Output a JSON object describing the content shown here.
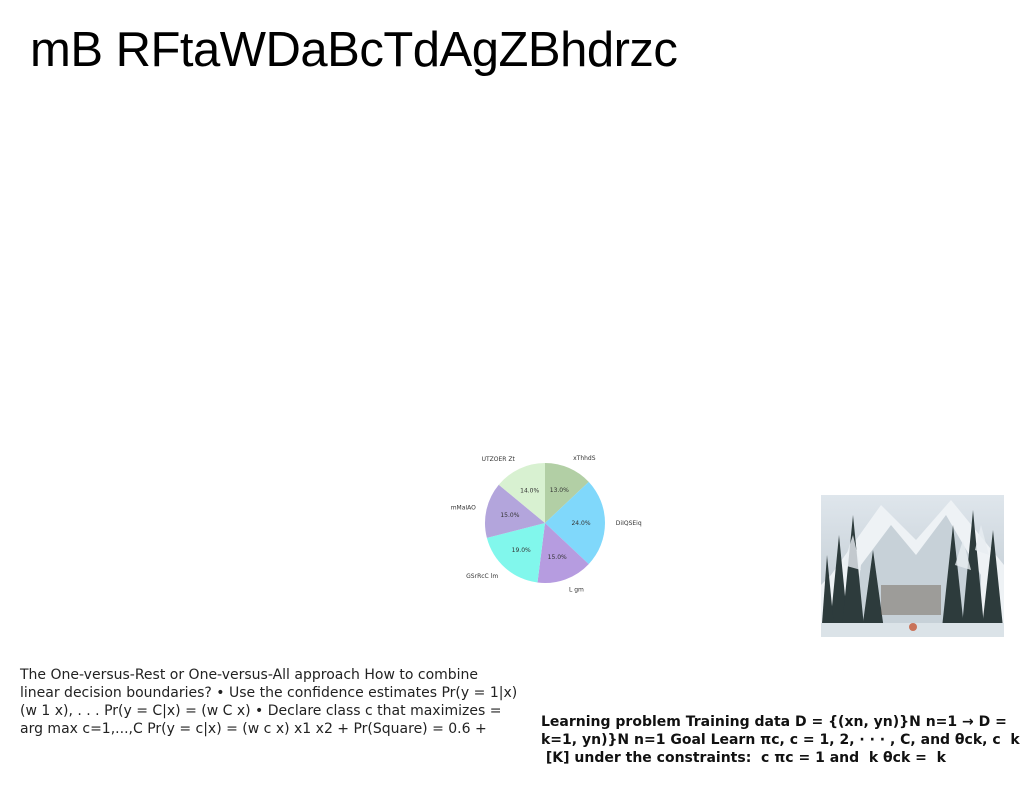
{
  "page": {
    "title": "mB RFtaWDaBcTdAgZBhdrzc"
  },
  "chart_data": {
    "type": "pie",
    "title": "",
    "slices": [
      {
        "label": "xThhdS",
        "value": 13.0,
        "pct_label": "13.0%",
        "color": "#b2cfa5"
      },
      {
        "label": "DiIQSEiq",
        "value": 24.0,
        "pct_label": "24.0%",
        "color": "#80d8fb"
      },
      {
        "label": "L gm",
        "value": 15.0,
        "pct_label": "15.0%",
        "color": "#b69ce0"
      },
      {
        "label": "GSrRcC lm",
        "value": 19.0,
        "pct_label": "19.0%",
        "color": "#81f7ec"
      },
      {
        "label": "mMaIAO",
        "value": 15.0,
        "pct_label": "15.0%",
        "color": "#b3a5dc"
      },
      {
        "label": "UTZOER Zt",
        "value": 14.0,
        "pct_label": "14.0%",
        "color": "#d8f1d1"
      }
    ]
  },
  "image": {
    "alt_name": "snowy forest photo"
  },
  "text_blocks": {
    "left": "The One-versus-Rest or One-versus-All approach How to combine linear decision boundaries? • Use the confidence estimates Pr(y = 1|x) ￼(w￼ 1 x), . . . Pr(y = C|x) = ￼(w￼ C x) • Declare class c￼ that maximizes = arg max c=1,...,C Pr(y = c|x) = ￼(w￼ c x) x1 x2 + Pr(Square) = 0.6 +",
    "right": "Learning problem Training data D = {(xn, yn)}N n=1 → D = k=1, yn)}N n=1 Goal Learn πc, c = 1, 2, · · · , C, and θck, ￼c ￼ k ￼ [K] under the constraints: ￼ c πc = 1 and ￼ k θck = ￼ k"
  }
}
